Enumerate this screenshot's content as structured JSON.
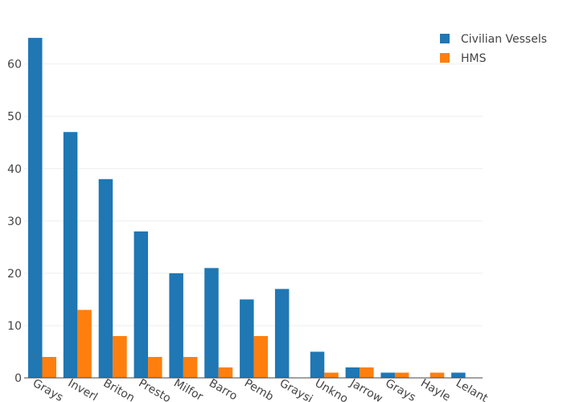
{
  "chart_data": {
    "type": "bar",
    "categories": [
      "Grays",
      "Inverl",
      "Briton",
      "Presto",
      "Milfor",
      "Barro",
      "Pemb",
      "Graysi",
      "Unkno",
      "Jarrow",
      "Grays",
      "Hayle",
      "Lelant"
    ],
    "series": [
      {
        "name": "Civilian Vessels",
        "color": "#1f77b4",
        "values": [
          65,
          47,
          38,
          28,
          20,
          21,
          15,
          17,
          5,
          2,
          1,
          0,
          1
        ]
      },
      {
        "name": "HMS",
        "color": "#ff7f0e",
        "values": [
          4,
          13,
          8,
          4,
          4,
          2,
          8,
          0,
          1,
          2,
          1,
          1,
          0
        ]
      }
    ],
    "y_ticks": [
      0,
      10,
      20,
      30,
      40,
      50,
      60
    ],
    "ylim": [
      0,
      68.4
    ],
    "grid": true,
    "legend_position": "top-right"
  }
}
